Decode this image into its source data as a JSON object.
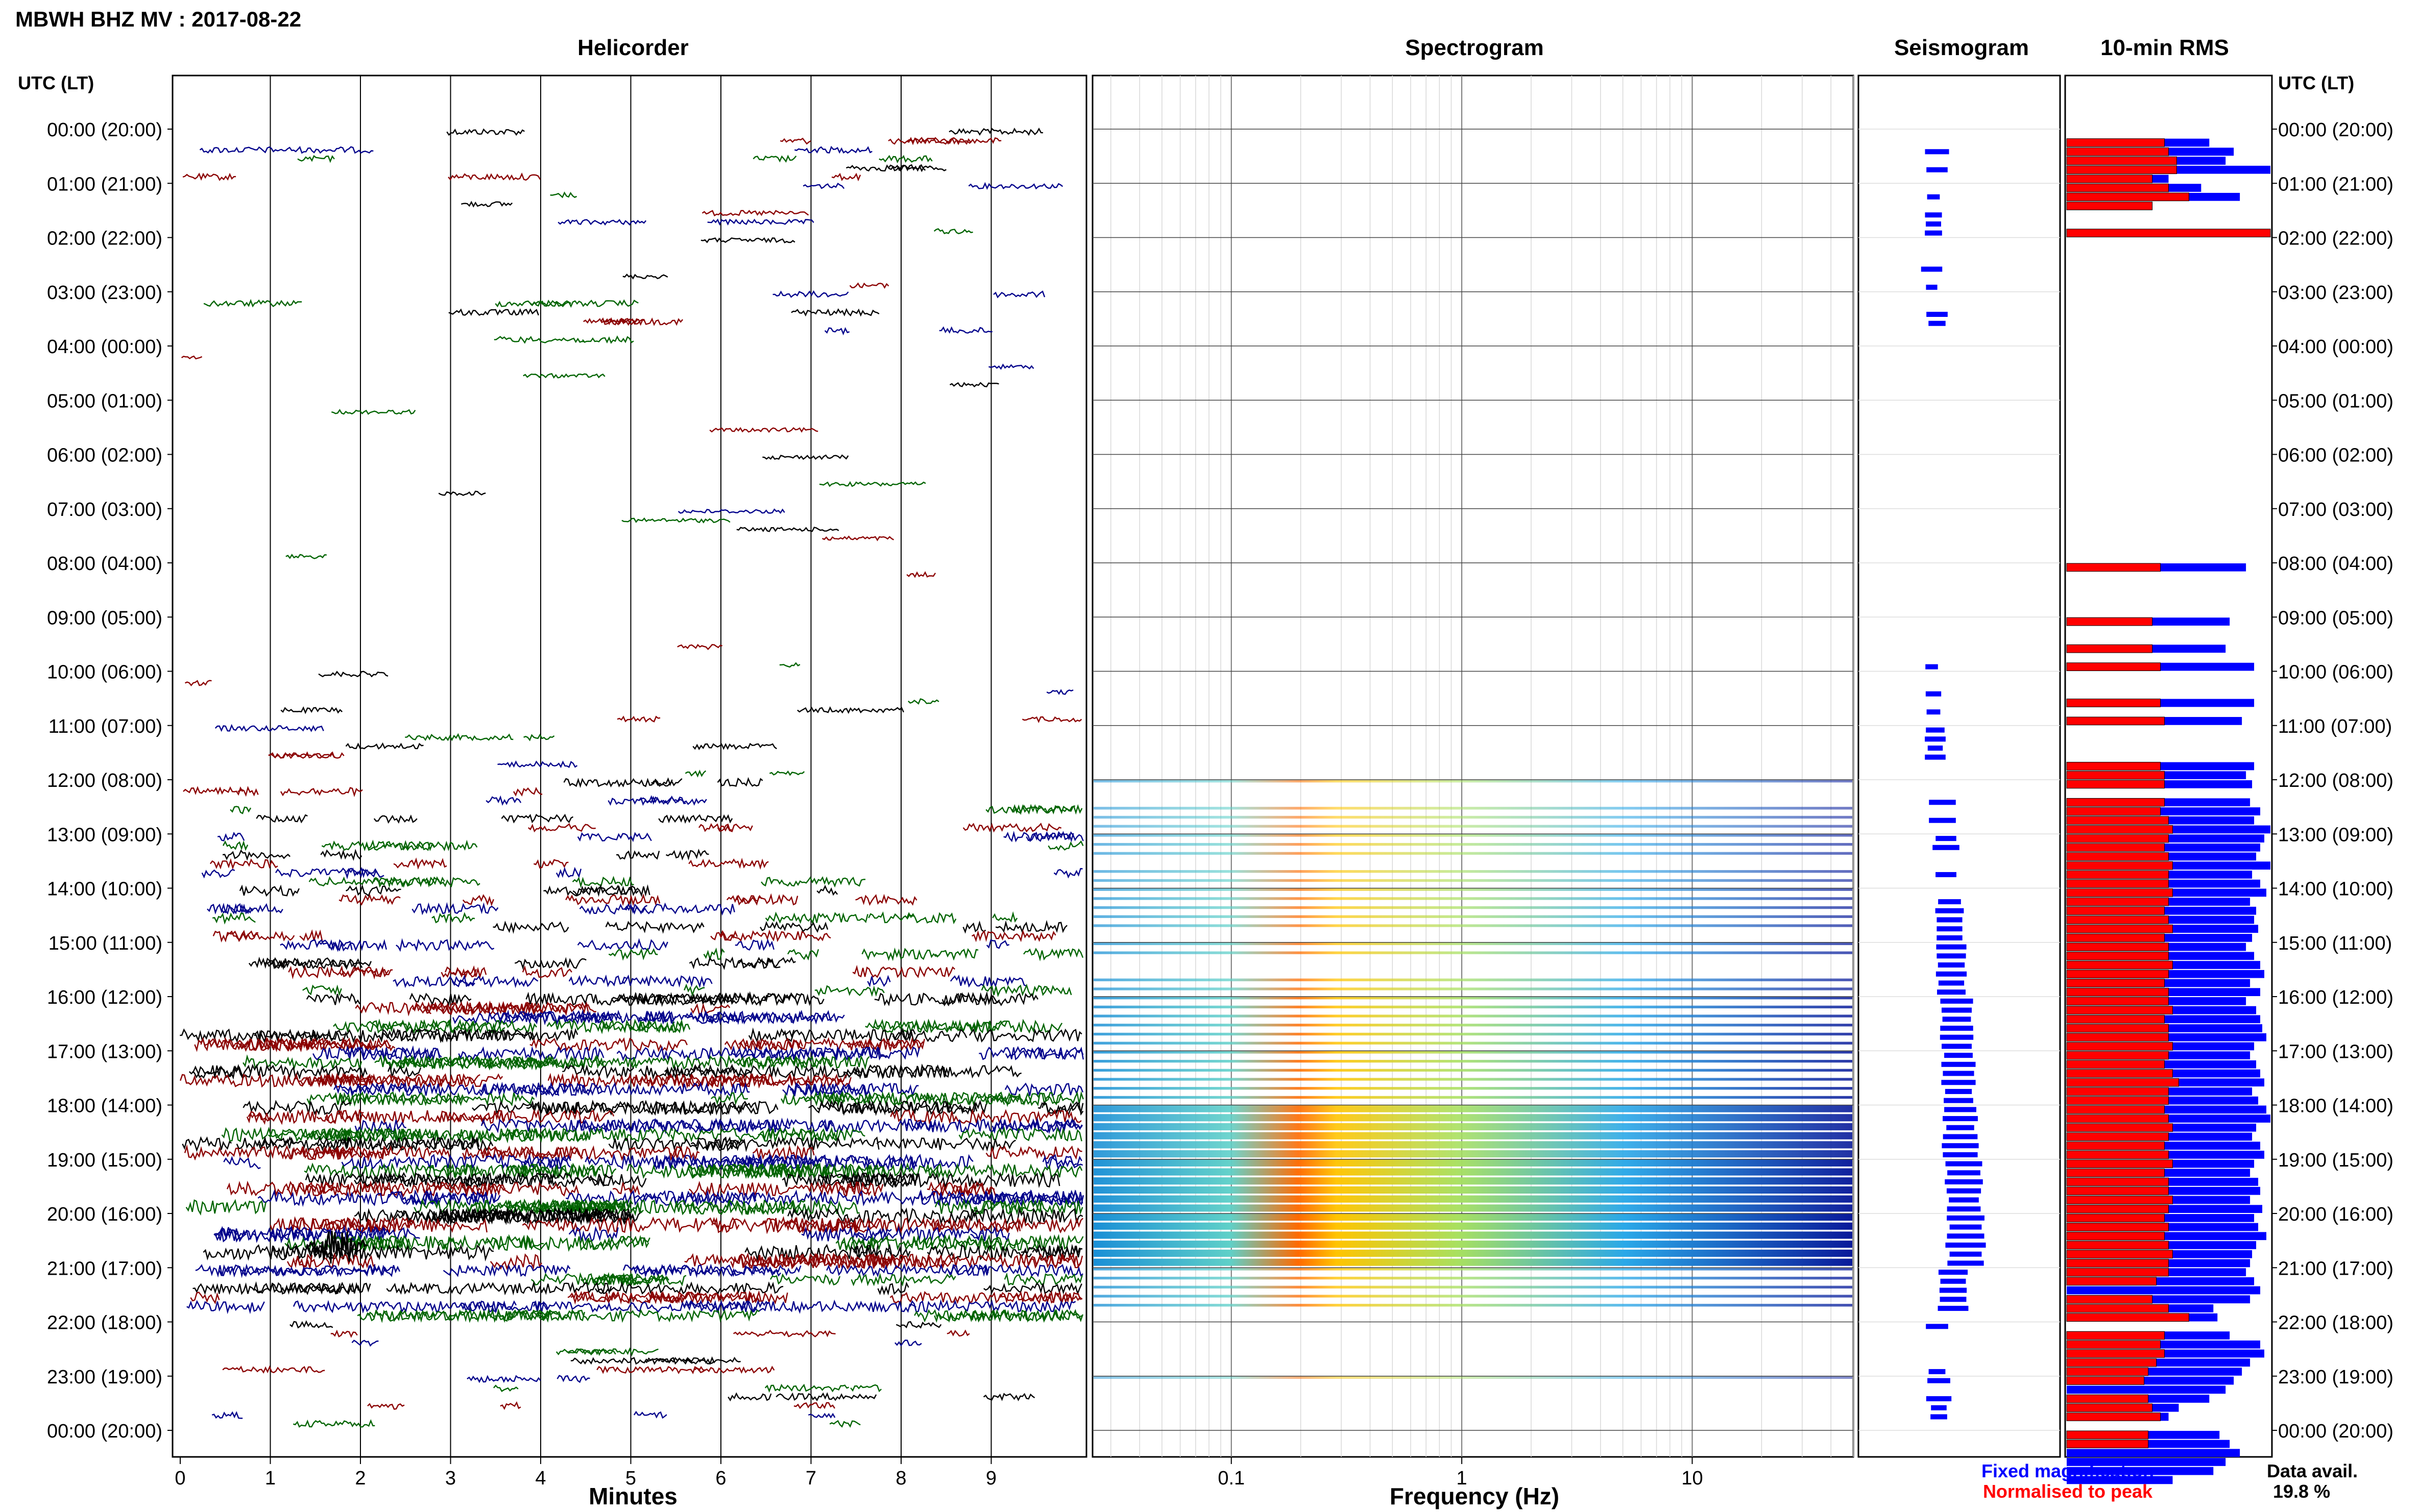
{
  "figure": {
    "title": "MBWH BHZ MV : 2017-08-22",
    "data_avail_label": "Data avail.",
    "data_avail_value": "19.8 %"
  },
  "panels": {
    "helicorder": "Helicorder",
    "spectrogram": "Spectrogram",
    "seismogram": "Seismogram",
    "rms": "10-min RMS"
  },
  "axis": {
    "utc_header_left": "UTC (LT)",
    "utc_header_right": "UTC (LT)",
    "hour_labels": [
      "00:00 (20:00)",
      "01:00 (21:00)",
      "02:00 (22:00)",
      "03:00 (23:00)",
      "04:00 (00:00)",
      "05:00 (01:00)",
      "06:00 (02:00)",
      "07:00 (03:00)",
      "08:00 (04:00)",
      "09:00 (05:00)",
      "10:00 (06:00)",
      "11:00 (07:00)",
      "12:00 (08:00)",
      "13:00 (09:00)",
      "14:00 (10:00)",
      "15:00 (11:00)",
      "16:00 (12:00)",
      "17:00 (13:00)",
      "18:00 (14:00)",
      "19:00 (15:00)",
      "20:00 (16:00)",
      "21:00 (17:00)",
      "22:00 (18:00)",
      "23:00 (19:00)",
      "00:00 (20:00)"
    ],
    "minutes_label": "Minutes",
    "minutes_ticks": [
      "0",
      "1",
      "2",
      "3",
      "4",
      "5",
      "6",
      "7",
      "8",
      "9"
    ],
    "frequency_label": "Frequency (Hz)",
    "frequency_ticks": [
      "0.1",
      "1",
      "10"
    ],
    "frequency_range_hz": [
      0.025,
      50
    ]
  },
  "legend": {
    "fixed": "Fixed magnification",
    "normalised": "Normalised to peak",
    "fixed_color": "#0000ff",
    "normalised_color": "#ff0000"
  },
  "chart_data": {
    "type": "heatmap",
    "x_minutes_range": [
      0,
      10
    ],
    "y_hours_range": [
      0,
      24
    ],
    "trace_colors": [
      "#000000",
      "#8b0000",
      "#00008b",
      "#006400"
    ],
    "activity_by_hour": [
      0.2,
      0.1,
      0.05,
      0.2,
      0,
      0,
      0,
      0,
      0.05,
      0.05,
      0.1,
      0.15,
      0.35,
      0.45,
      0.55,
      0.6,
      0.75,
      0.8,
      0.85,
      0.95,
      1.0,
      0.65,
      0.2,
      0.25
    ],
    "rms_fixed": [
      0,
      0.7,
      0.82,
      0.78,
      1.0,
      0.5,
      0.66,
      0.85,
      0.22,
      0,
      0,
      1.0,
      0,
      0,
      0,
      0,
      0,
      0,
      0,
      0,
      0,
      0,
      0,
      0,
      0,
      0,
      0,
      0,
      0,
      0,
      0,
      0,
      0,
      0,
      0,
      0,
      0,
      0,
      0,
      0,
      0,
      0,
      0,
      0,
      0,
      0,
      0,
      0,
      0.88,
      0,
      0,
      0,
      0,
      0,
      0.8,
      0,
      0,
      0.78,
      0,
      0.92,
      0,
      0,
      0,
      0.92,
      0,
      0.86,
      0,
      0,
      0,
      0,
      0.92,
      0.88,
      0.91,
      0,
      0.9,
      0.95,
      0.92,
      1.0,
      0.97,
      0.95,
      0.93,
      1.0,
      0.91,
      0.95,
      0.98,
      0.9,
      0.93,
      0.92,
      0.94,
      0.91,
      0.88,
      0.92,
      0.95,
      0.97,
      0.9,
      0.95,
      0.88,
      0.93,
      0.95,
      0.96,
      0.98,
      0.92,
      0.9,
      0.93,
      0.95,
      0.97,
      0.91,
      0.94,
      0.98,
      1.0,
      0.93,
      0.91,
      0.95,
      0.97,
      0.92,
      0.9,
      0.94,
      0.95,
      0.9,
      0.96,
      0.92,
      0.94,
      0.98,
      0.93,
      0.91,
      0.9,
      0.88,
      0.92,
      0.95,
      0.9,
      0.72,
      0.74,
      0,
      0.8,
      0.95,
      0.97,
      0.9,
      0.86,
      0.82,
      0.78,
      0.7,
      0.55,
      0.5,
      0,
      0.75,
      0.8,
      0.85,
      0.78,
      0.72,
      0.52
    ],
    "rms_normalised": [
      0,
      0.48,
      0.5,
      0.54,
      0.54,
      0.42,
      0.5,
      0.6,
      0.42,
      0,
      0,
      1.0,
      0,
      0,
      0,
      0,
      0,
      0,
      0,
      0,
      0,
      0,
      0,
      0,
      0,
      0,
      0,
      0,
      0,
      0,
      0,
      0,
      0,
      0,
      0,
      0,
      0,
      0,
      0,
      0,
      0,
      0,
      0,
      0,
      0,
      0,
      0,
      0,
      0.46,
      0,
      0,
      0,
      0,
      0,
      0.42,
      0,
      0,
      0.42,
      0,
      0.46,
      0,
      0,
      0,
      0.46,
      0,
      0.48,
      0,
      0,
      0,
      0,
      0.46,
      0.48,
      0.48,
      0,
      0.48,
      0.46,
      0.5,
      0.52,
      0.5,
      0.48,
      0.5,
      0.52,
      0.5,
      0.5,
      0.52,
      0.5,
      0.48,
      0.5,
      0.52,
      0.48,
      0.5,
      0.5,
      0.52,
      0.5,
      0.48,
      0.5,
      0.5,
      0.52,
      0.48,
      0.5,
      0.5,
      0.52,
      0.5,
      0.48,
      0.52,
      0.55,
      0.5,
      0.5,
      0.48,
      0.5,
      0.52,
      0.5,
      0.48,
      0.5,
      0.52,
      0.48,
      0.5,
      0.5,
      0.52,
      0.5,
      0.48,
      0.5,
      0.48,
      0.5,
      0.52,
      0.5,
      0.5,
      0.44,
      0,
      0.42,
      0.5,
      0.6,
      0.5,
      0.48,
      0.46,
      0.48,
      0.44,
      0.4,
      0.38,
      0,
      0.4,
      0.42,
      0.46,
      0.5,
      0.4,
      0.4
    ]
  }
}
